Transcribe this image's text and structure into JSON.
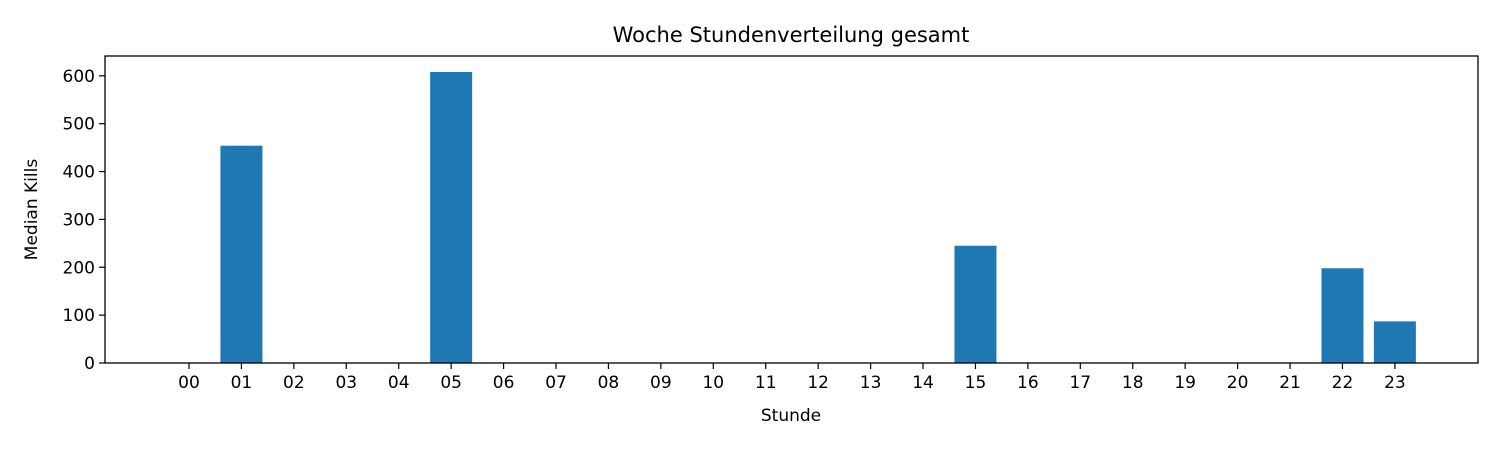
{
  "chart_data": {
    "type": "bar",
    "title": "Woche Stundenverteilung gesamt",
    "xlabel": "Stunde",
    "ylabel": "Median Kills",
    "categories": [
      "00",
      "01",
      "02",
      "03",
      "04",
      "05",
      "06",
      "07",
      "08",
      "09",
      "10",
      "11",
      "12",
      "13",
      "14",
      "15",
      "16",
      "17",
      "18",
      "19",
      "20",
      "21",
      "22",
      "23"
    ],
    "values": [
      0,
      454,
      0,
      0,
      0,
      608,
      0,
      0,
      0,
      0,
      0,
      0,
      0,
      0,
      0,
      245,
      0,
      0,
      0,
      0,
      0,
      0,
      198,
      87
    ],
    "ylim": [
      0,
      640
    ],
    "yticks": [
      0,
      100,
      200,
      300,
      400,
      500,
      600
    ],
    "bar_color": "#1f77b4",
    "grid": false,
    "legend": "none"
  }
}
